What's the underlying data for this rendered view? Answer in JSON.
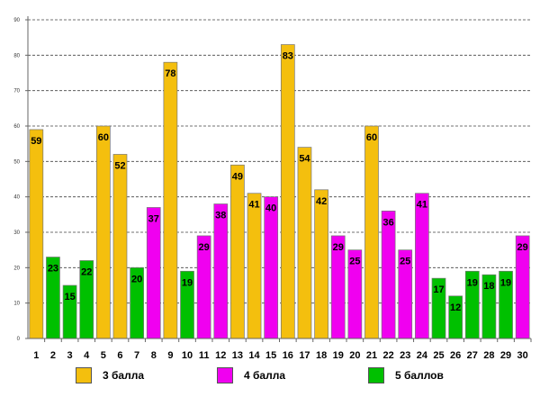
{
  "chart_data": {
    "type": "bar",
    "categories": [
      "1",
      "2",
      "3",
      "4",
      "5",
      "6",
      "7",
      "8",
      "9",
      "10",
      "11",
      "12",
      "13",
      "14",
      "15",
      "16",
      "17",
      "18",
      "19",
      "20",
      "21",
      "22",
      "23",
      "24",
      "25",
      "26",
      "27",
      "28",
      "29",
      "30"
    ],
    "values": [
      59,
      23,
      15,
      22,
      60,
      52,
      20,
      37,
      78,
      19,
      29,
      38,
      49,
      41,
      40,
      83,
      54,
      42,
      29,
      25,
      60,
      36,
      25,
      41,
      17,
      12,
      19,
      18,
      19,
      29
    ],
    "series_index": [
      0,
      2,
      2,
      2,
      0,
      0,
      2,
      1,
      0,
      2,
      1,
      1,
      0,
      0,
      1,
      0,
      0,
      0,
      1,
      1,
      0,
      1,
      1,
      1,
      2,
      2,
      2,
      2,
      2,
      1
    ],
    "series": [
      {
        "name": "3 балла",
        "color": "#f4bf0e"
      },
      {
        "name": "4 балла",
        "color": "#f000f0"
      },
      {
        "name": "5 баллов",
        "color": "#00c000"
      }
    ],
    "y_ticks": [
      0,
      10,
      20,
      30,
      40,
      50,
      60,
      70,
      80,
      90
    ],
    "ylim": [
      0,
      90
    ],
    "title": "",
    "xlabel": "",
    "ylabel": "",
    "grid": true,
    "legend_position": "bottom"
  }
}
